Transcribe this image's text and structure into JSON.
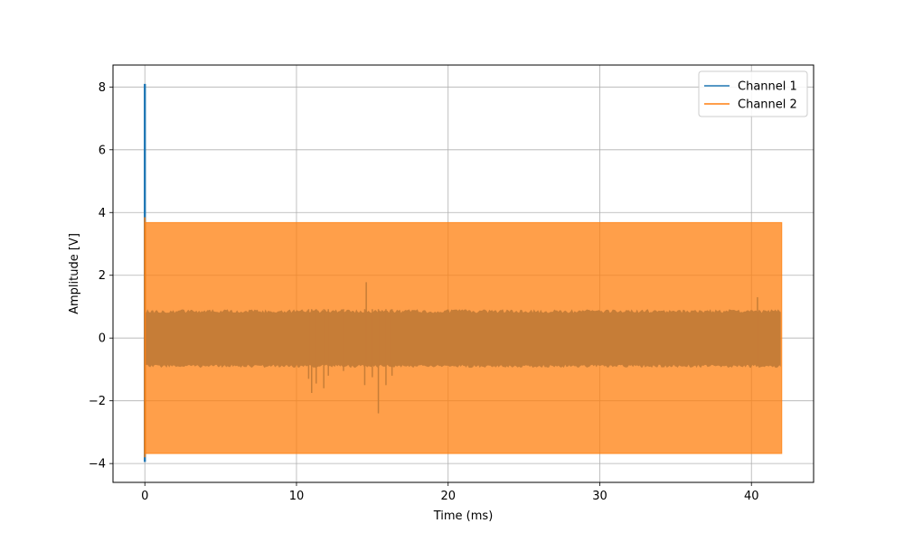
{
  "chart_data": {
    "type": "line",
    "xlabel": "Time (ms)",
    "ylabel": "Amplitude [V]",
    "xlim": [
      -2.1,
      44.1
    ],
    "ylim": [
      -4.6,
      8.7
    ],
    "xticks": [
      0,
      10,
      20,
      30,
      40
    ],
    "yticks": [
      -4,
      -2,
      0,
      2,
      4,
      6,
      8
    ],
    "grid": true,
    "legend": {
      "position": "top-right",
      "entries": [
        "Channel 1",
        "Channel 2"
      ]
    },
    "series": [
      {
        "name": "Channel 1",
        "color": "#1f77b4",
        "style": "noise band with spikes",
        "x_range": [
          0,
          42
        ],
        "band": [
          -0.85,
          0.92
        ],
        "initial_spike": {
          "x": 0,
          "min": -3.95,
          "max": 8.1
        },
        "spikes": [
          {
            "x": 10.8,
            "min": -1.3
          },
          {
            "x": 11.0,
            "min": -1.75
          },
          {
            "x": 11.3,
            "min": -1.45
          },
          {
            "x": 11.8,
            "min": -1.6
          },
          {
            "x": 12.1,
            "min": -1.2
          },
          {
            "x": 13.1,
            "min": -1.05
          },
          {
            "x": 14.5,
            "min": -1.5
          },
          {
            "x": 14.6,
            "max": 1.78
          },
          {
            "x": 15.0,
            "min": -1.25
          },
          {
            "x": 15.4,
            "min": -2.4
          },
          {
            "x": 15.9,
            "min": -1.5
          },
          {
            "x": 16.3,
            "min": -1.2
          },
          {
            "x": 40.4,
            "max": 1.3
          }
        ]
      },
      {
        "name": "Channel 2",
        "color": "#ff7f0e",
        "style": "filled oscillation band",
        "x_range": [
          0,
          42
        ],
        "band": [
          -3.68,
          3.68
        ],
        "initial_spike": {
          "x": 0,
          "min": -3.8,
          "max": 3.85
        }
      }
    ]
  }
}
